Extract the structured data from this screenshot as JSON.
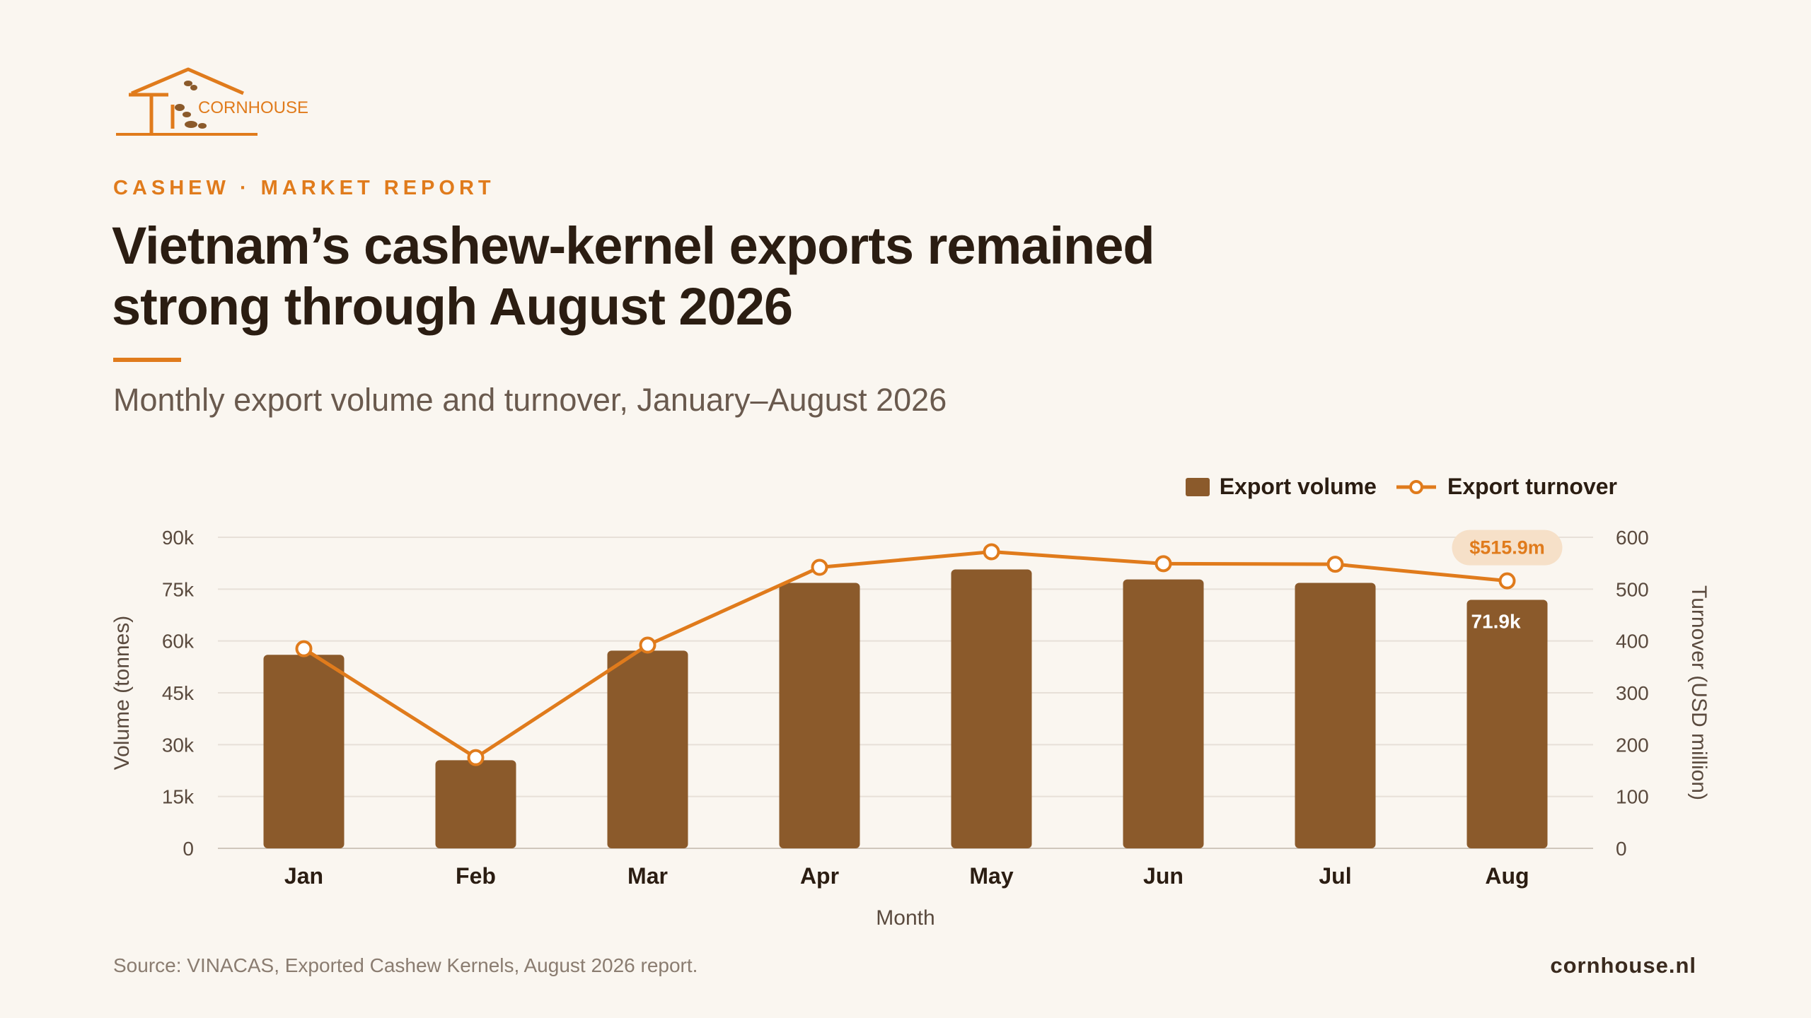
{
  "brand": {
    "logo_text": "CORNHOUSE",
    "accent_color": "#e07b1c",
    "bar_color": "#8b5a2b",
    "background": "#faf6f0"
  },
  "kicker": "CASHEW · MARKET REPORT",
  "title": "Vietnam’s cashew-kernel exports remained strong through August 2026",
  "subtitle": "Monthly export volume and turnover, January–August 2026",
  "legend": {
    "volume": "Export volume",
    "turnover": "Export turnover"
  },
  "chart_data": {
    "type": "bar",
    "categories": [
      "Jan",
      "Feb",
      "Mar",
      "Apr",
      "May",
      "Jun",
      "Jul",
      "Aug"
    ],
    "xlabel": "Month",
    "ylabel": "Volume (tonnes)",
    "y2label": "Turnover (USD million)",
    "ylim": [
      0,
      90000
    ],
    "y2lim": [
      0,
      600
    ],
    "yticks": [
      "0",
      "15k",
      "30k",
      "45k",
      "60k",
      "75k",
      "90k"
    ],
    "y2ticks": [
      "0",
      "100",
      "200",
      "300",
      "400",
      "500",
      "600"
    ],
    "grid": true,
    "legend_position": "top-right",
    "series": [
      {
        "name": "Export volume",
        "type": "bar",
        "axis": "left",
        "values": [
          56000,
          25500,
          57200,
          76800,
          80700,
          77800,
          76800,
          71900
        ]
      },
      {
        "name": "Export turnover",
        "type": "line",
        "axis": "right",
        "values": [
          385,
          175,
          392,
          542,
          572,
          549,
          548,
          515.9
        ]
      }
    ],
    "annotations": [
      {
        "category": "Aug",
        "series": "Export volume",
        "text": "71.9k"
      },
      {
        "category": "Aug",
        "series": "Export turnover",
        "text": "$515.9m"
      }
    ]
  },
  "source": "Source: VINACAS, Exported Cashew Kernels, August 2026 report.",
  "site": "cornhouse.nl"
}
